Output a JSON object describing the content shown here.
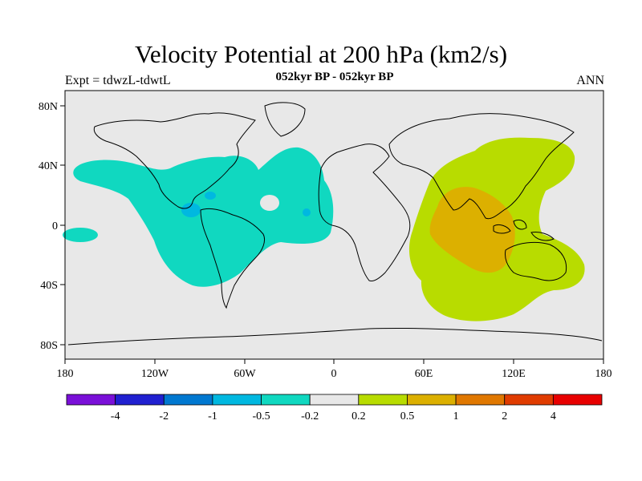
{
  "title": "Velocity Potential at 200 hPa (km2/s)",
  "subtitle": "052kyr BP - 052kyr BP",
  "left_string": "Expt = tdwzL-tdwtL",
  "right_string": "ANN",
  "lat_ticks": [
    "80N",
    "40N",
    "0",
    "40S",
    "80S"
  ],
  "lon_ticks": [
    "180",
    "120W",
    "60W",
    "0",
    "60E",
    "120E",
    "180"
  ],
  "colorbar": {
    "colors": [
      "#7a10d8",
      "#2020d0",
      "#0078d0",
      "#00b8e0",
      "#10d8c0",
      "#e8e8e8",
      "#b8dc00",
      "#dcb000",
      "#e07800",
      "#e03c00",
      "#e80000"
    ],
    "labels": [
      "-4",
      "-2",
      "-1",
      "-0.5",
      "-0.2",
      "0.2",
      "0.5",
      "1",
      "2",
      "4"
    ]
  },
  "colors": {
    "background": "#e8e8e8",
    "negative_fill": "#10d8c0",
    "negative_core": "#00b8e0",
    "positive_fill": "#b8dc00",
    "positive_core": "#dcb000"
  }
}
